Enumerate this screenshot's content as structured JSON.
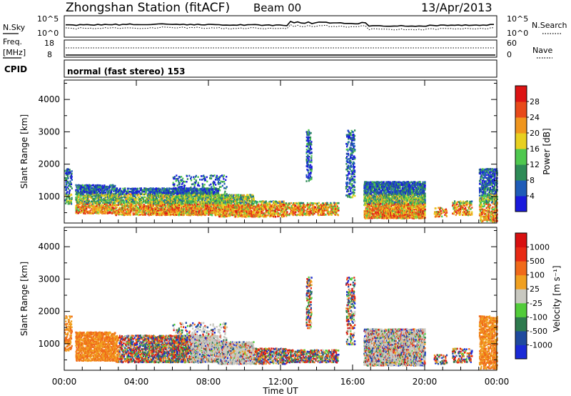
{
  "header": {
    "station": "Zhongshan Station (fitACF)",
    "beam": "Beam 00",
    "date": "13/Apr/2013"
  },
  "noise_panel": {
    "left_label": "N.Sky",
    "right_label": "N.Search",
    "left_ticks": [
      "10^5",
      "10^0"
    ],
    "right_ticks": [
      "10^5",
      "10^0"
    ]
  },
  "freq_panel": {
    "left_label_1": "Freq.",
    "left_label_2": "[MHz]",
    "right_label": "Nave",
    "left_ticks": [
      "18",
      "8"
    ],
    "right_ticks": [
      "60",
      "0"
    ]
  },
  "cpid": {
    "label": "CPID",
    "text": "normal (fast stereo) 153"
  },
  "chart_data": [
    {
      "type": "heatmap",
      "title": "",
      "ylabel": "Slant Range [km]",
      "xlabel": "",
      "x_ticks": [
        "00:00",
        "04:00",
        "08:00",
        "12:00",
        "16:00",
        "20:00",
        "00:00"
      ],
      "y_ticks": [
        1000,
        2000,
        3000,
        4000
      ],
      "ylim": [
        180,
        4600
      ],
      "colorbar": {
        "label": "Power [dB]",
        "ticks": [
          "4",
          "8",
          "12",
          "16",
          "20",
          "24",
          "28"
        ],
        "colors": [
          "#1a1adc",
          "#1f5cb8",
          "#2e8b57",
          "#4fc84f",
          "#e8d020",
          "#f0961e",
          "#e84a1a",
          "#dd1414"
        ]
      }
    },
    {
      "type": "heatmap",
      "title": "",
      "ylabel": "Slant Range [km]",
      "xlabel": "Time UT",
      "x_ticks": [
        "00:00",
        "04:00",
        "08:00",
        "12:00",
        "16:00",
        "20:00",
        "00:00"
      ],
      "y_ticks": [
        1000,
        2000,
        3000,
        4000
      ],
      "ylim": [
        180,
        4600
      ],
      "colorbar": {
        "label": "Velocity [m s⁻¹]",
        "ticks": [
          "1000",
          "500",
          "100",
          "25",
          "-25",
          "-100",
          "-500",
          "-1000"
        ],
        "colors": [
          "#1a2ad6",
          "#1f4a9e",
          "#2e7a4e",
          "#52cc3a",
          "#c8c8c0",
          "#f0a020",
          "#f06a1a",
          "#e82a14",
          "#d81010"
        ]
      }
    }
  ]
}
